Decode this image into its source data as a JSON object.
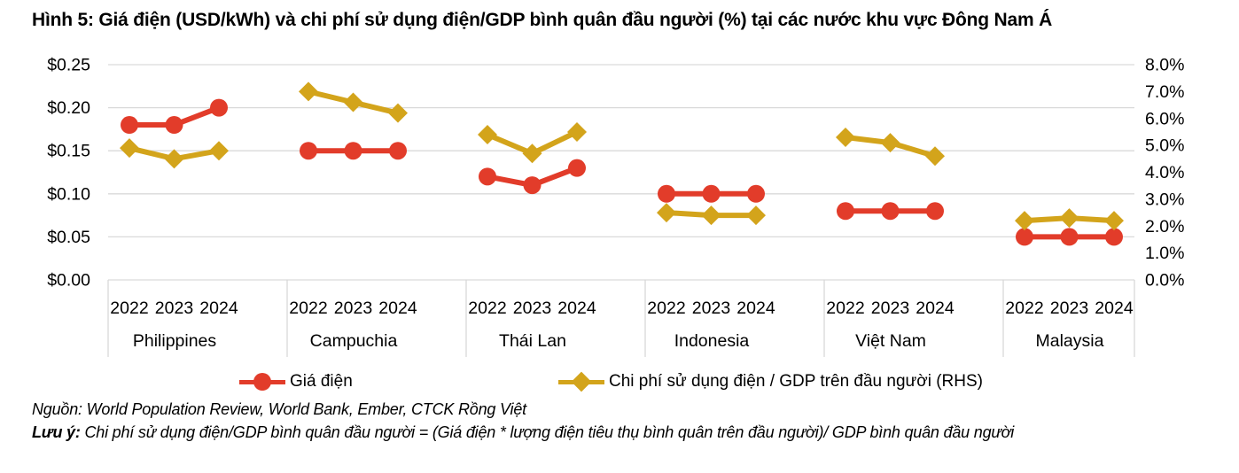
{
  "title": "Hình 5: Giá điện (USD/kWh) và chi phí sử dụng điện/GDP bình quân đầu người (%) tại các nước khu vực Đông Nam Á",
  "chart_data": {
    "type": "line",
    "groups": [
      "Philippines",
      "Campuchia",
      "Thái Lan",
      "Indonesia",
      "Việt Nam",
      "Malaysia"
    ],
    "years": [
      "2022",
      "2023",
      "2024"
    ],
    "left_axis": {
      "ticks": [
        "$0.00",
        "$0.05",
        "$0.10",
        "$0.15",
        "$0.20",
        "$0.25"
      ],
      "min": 0,
      "max": 0.25,
      "label": "USD/kWh"
    },
    "right_axis": {
      "ticks": [
        "0.0%",
        "1.0%",
        "2.0%",
        "3.0%",
        "4.0%",
        "5.0%",
        "6.0%",
        "7.0%",
        "8.0%"
      ],
      "min": 0,
      "max": 8
    },
    "grid": true,
    "legend_position": "bottom",
    "series": [
      {
        "name": "Giá điện",
        "axis": "left",
        "marker": "circle",
        "color": "#E23C2A",
        "values": [
          [
            0.18,
            0.18,
            0.2
          ],
          [
            0.15,
            0.15,
            0.15
          ],
          [
            0.12,
            0.11,
            0.13
          ],
          [
            0.1,
            0.1,
            0.1
          ],
          [
            0.08,
            0.08,
            0.08
          ],
          [
            0.05,
            0.05,
            0.05
          ]
        ]
      },
      {
        "name": "Chi phí sử dụng điện / GDP trên đầu người (RHS)",
        "axis": "right",
        "marker": "diamond",
        "color": "#D3A41B",
        "values": [
          [
            4.9,
            4.5,
            4.8
          ],
          [
            7.0,
            6.6,
            6.2
          ],
          [
            5.4,
            4.7,
            5.5
          ],
          [
            2.5,
            2.4,
            2.4
          ],
          [
            5.3,
            5.1,
            4.6
          ],
          [
            2.2,
            2.3,
            2.2
          ]
        ]
      }
    ]
  },
  "legend": {
    "items": [
      {
        "label": "Giá điện"
      },
      {
        "label": "Chi phí sử dụng điện / GDP trên đầu người (RHS)"
      }
    ]
  },
  "notes": {
    "source_label": "Nguồn:",
    "source_text": " World Population Review, World Bank, Ember, CTCK Rồng Việt",
    "remark_label": "Lưu ý:",
    "remark_text": " Chi phí sử dụng điện/GDP bình quân đầu người = (Giá điện * lượng điện tiêu thụ bình quân trên đầu người)/ GDP bình quân đầu người"
  },
  "colors": {
    "red": "#E23C2A",
    "gold": "#D3A41B",
    "grid": "#D9D9D9",
    "text": "#000000"
  }
}
